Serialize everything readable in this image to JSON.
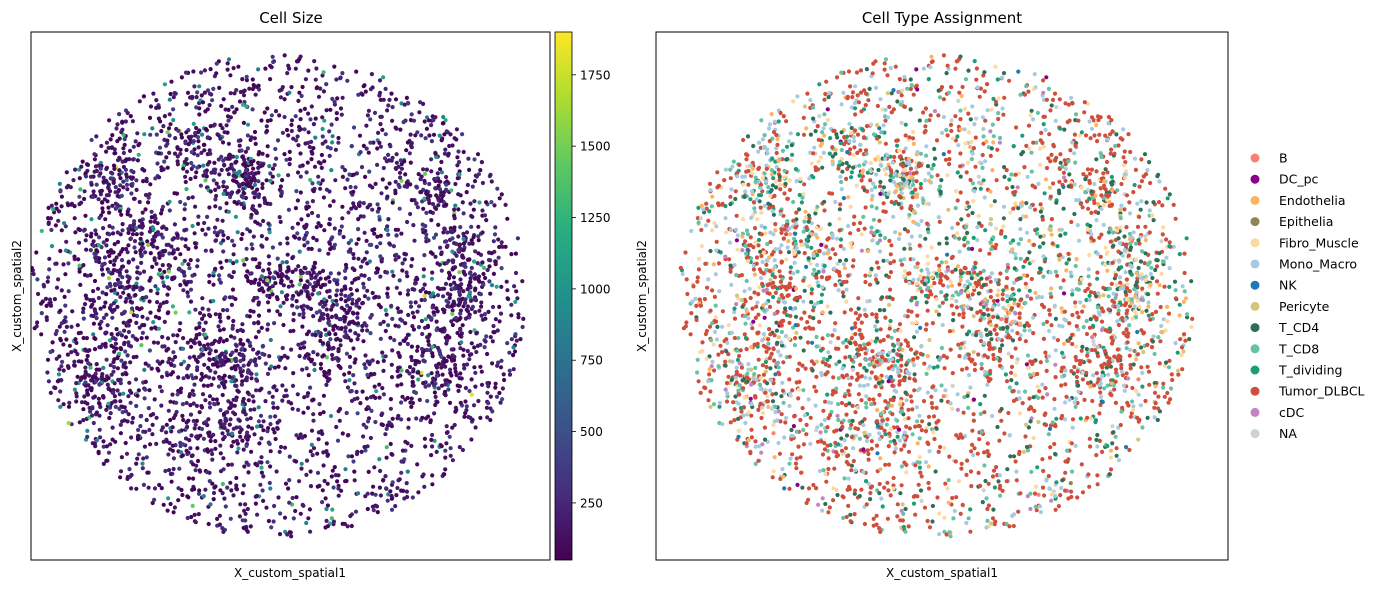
{
  "chart_data": [
    {
      "type": "scatter",
      "title": "Cell Size",
      "xlabel": "X_custom_spatial1",
      "ylabel": "X_custom_spatial2",
      "colorbar": {
        "colormap": "viridis",
        "range": [
          50,
          1900
        ],
        "ticks": [
          250,
          500,
          750,
          1000,
          1250,
          1500,
          1750
        ],
        "tick_labels": [
          "250",
          "500",
          "750",
          "1000",
          "1250",
          "1500",
          "1750"
        ]
      },
      "shape": "circular tissue section",
      "grid": false,
      "value_distribution": {
        "low_range": [
          60,
          500
        ],
        "low_fraction": 0.93,
        "high_range": [
          800,
          1900
        ]
      }
    },
    {
      "type": "scatter",
      "title": "Cell Type Assignment",
      "xlabel": "X_custom_spatial1",
      "ylabel": "X_custom_spatial2",
      "grid": false,
      "legend_position": "right",
      "categories": [
        {
          "name": "B",
          "color": "#fa8072",
          "share": 0.004
        },
        {
          "name": "DC_pc",
          "color": "#8b008b",
          "share": 0.006
        },
        {
          "name": "Endothelia",
          "color": "#fdb462",
          "share": 0.02
        },
        {
          "name": "Epithelia",
          "color": "#8c8650",
          "share": 0.003
        },
        {
          "name": "Fibro_Muscle",
          "color": "#fdd9a2",
          "share": 0.04
        },
        {
          "name": "Mono_Macro",
          "color": "#a6cbe0",
          "share": 0.15
        },
        {
          "name": "NK",
          "color": "#1f78b4",
          "share": 0.01
        },
        {
          "name": "Pericyte",
          "color": "#d4c67a",
          "share": 0.015
        },
        {
          "name": "T_CD4",
          "color": "#2e7055",
          "share": 0.1
        },
        {
          "name": "T_CD8",
          "color": "#66c2a5",
          "share": 0.1
        },
        {
          "name": "T_dividing",
          "color": "#1b9e77",
          "share": 0.04
        },
        {
          "name": "Tumor_DLBCL",
          "color": "#cf4f3c",
          "share": 0.48
        },
        {
          "name": "cDC",
          "color": "#c384c4",
          "share": 0.02
        },
        {
          "name": "NA",
          "color": "#d0d0d0",
          "share": 0.012
        }
      ]
    }
  ]
}
